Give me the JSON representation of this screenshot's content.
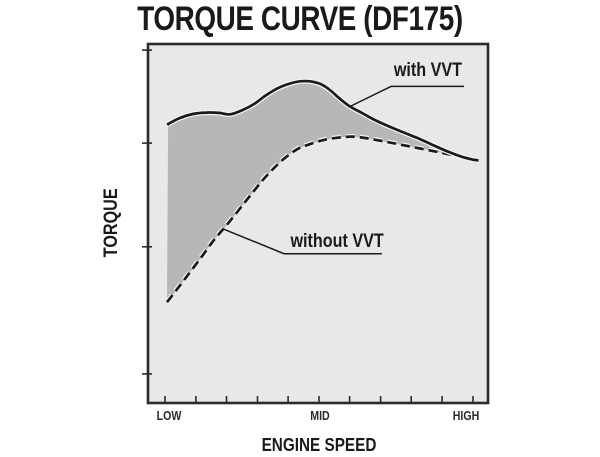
{
  "header": {
    "title": "TORQUE CURVE (DF175)"
  },
  "colors": {
    "page_bg": "#ffffff",
    "plot_bg": "#e8e8e7",
    "shade_fill": "#b6b8b7",
    "line": "#1a1a1a",
    "border": "#2b2b2b",
    "halo": "#f4f4f3",
    "text": "#231f20"
  },
  "chart_data": {
    "type": "line",
    "title": "TORQUE CURVE (DF175)",
    "xlabel": "ENGINE SPEED",
    "ylabel": "TORQUE",
    "x_tick_labels": [
      "LOW",
      "MID",
      "HIGH"
    ],
    "xlim": [
      0,
      100
    ],
    "ylim": [
      0,
      100
    ],
    "grid": false,
    "legend": "inline callout labels",
    "fill_between_series": true,
    "x_ticks_pct": [
      5.0,
      14.1,
      23.1,
      32.2,
      41.2,
      50.3,
      59.3,
      68.4,
      77.4,
      86.5,
      95.6
    ],
    "y_ticks_pct": [
      8.1,
      43.5,
      72.4,
      98.3
    ],
    "x_tick_label_pos_pct": [
      5.0,
      50.3,
      93.8
    ],
    "series": [
      {
        "name": "with VVT",
        "style": "solid",
        "points": [
          [
            5.9,
            77.7
          ],
          [
            9.4,
            79.4
          ],
          [
            13.2,
            80.5
          ],
          [
            17.1,
            80.9
          ],
          [
            20.9,
            80.8
          ],
          [
            24.1,
            80.4
          ],
          [
            27.6,
            81.5
          ],
          [
            31.2,
            83.3
          ],
          [
            34.7,
            85.7
          ],
          [
            38.2,
            87.7
          ],
          [
            41.8,
            89.0
          ],
          [
            44.7,
            89.6
          ],
          [
            47.6,
            89.6
          ],
          [
            50.6,
            88.9
          ],
          [
            53.5,
            87.2
          ],
          [
            56.5,
            84.7
          ],
          [
            59.4,
            82.6
          ],
          [
            62.9,
            80.8
          ],
          [
            66.8,
            78.8
          ],
          [
            71.2,
            76.9
          ],
          [
            75.6,
            75.2
          ],
          [
            80.0,
            73.5
          ],
          [
            84.4,
            71.6
          ],
          [
            88.8,
            69.8
          ],
          [
            92.6,
            68.5
          ],
          [
            95.9,
            67.7
          ]
        ]
      },
      {
        "name": "without VVT",
        "style": "dashed",
        "points": [
          [
            5.6,
            28.1
          ],
          [
            8.8,
            32.0
          ],
          [
            12.4,
            36.5
          ],
          [
            15.9,
            40.9
          ],
          [
            19.4,
            45.4
          ],
          [
            22.9,
            49.3
          ],
          [
            26.5,
            53.5
          ],
          [
            30.0,
            57.7
          ],
          [
            33.5,
            61.8
          ],
          [
            37.1,
            65.5
          ],
          [
            40.6,
            68.5
          ],
          [
            44.1,
            70.8
          ],
          [
            47.6,
            72.1
          ],
          [
            51.8,
            73.3
          ],
          [
            55.9,
            73.9
          ],
          [
            60.0,
            74.2
          ],
          [
            64.7,
            73.7
          ],
          [
            69.7,
            72.8
          ],
          [
            74.7,
            71.9
          ],
          [
            80.0,
            70.9
          ],
          [
            85.3,
            69.9
          ],
          [
            90.3,
            68.9
          ],
          [
            94.1,
            68.2
          ],
          [
            97.9,
            67.4
          ]
        ]
      }
    ]
  },
  "annotations": {
    "with_vvt": {
      "anchor_pct": [
        59.4,
        82.6
      ],
      "elbow_pct": [
        71.5,
        88.2
      ],
      "underline_end_pct": [
        92.9,
        88.2
      ]
    },
    "without_vvt": {
      "anchor_pct": [
        22.1,
        48.5
      ],
      "elbow_pct": [
        40.0,
        41.6
      ],
      "underline_end_pct": [
        68.8,
        41.6
      ]
    }
  }
}
